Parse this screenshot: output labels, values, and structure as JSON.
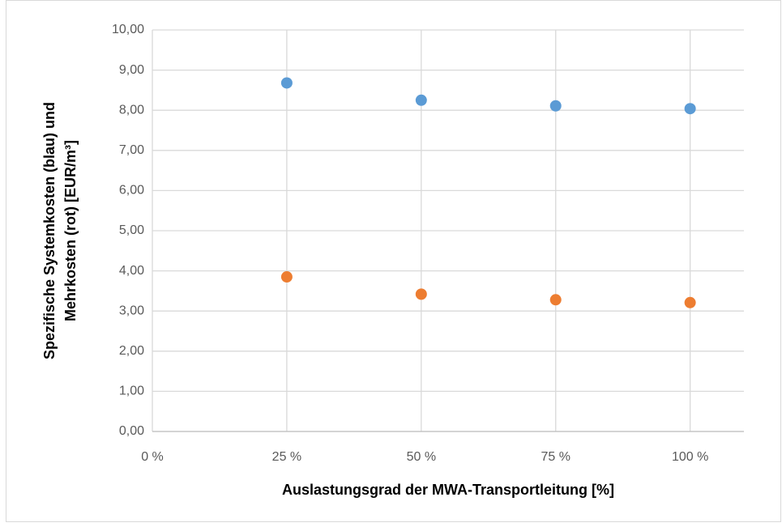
{
  "chart_data": {
    "type": "scatter",
    "xlabel": "Auslastungsgrad der MWA-Transportleitung [%]",
    "ylabel": [
      "Spezifische Systemkosten (blau) und",
      "Mehrkosten (rot) [EUR/m³]"
    ],
    "xlim": [
      0,
      110
    ],
    "xticks": [
      {
        "value": 0,
        "label": "0 %"
      },
      {
        "value": 25,
        "label": "25 %"
      },
      {
        "value": 50,
        "label": "50 %"
      },
      {
        "value": 75,
        "label": "75 %"
      },
      {
        "value": 100,
        "label": "100 %"
      }
    ],
    "ylim": [
      0,
      10
    ],
    "yticks": [
      {
        "value": 0,
        "label": "0,00"
      },
      {
        "value": 1,
        "label": "1,00"
      },
      {
        "value": 2,
        "label": "2,00"
      },
      {
        "value": 3,
        "label": "3,00"
      },
      {
        "value": 4,
        "label": "4,00"
      },
      {
        "value": 5,
        "label": "5,00"
      },
      {
        "value": 6,
        "label": "6,00"
      },
      {
        "value": 7,
        "label": "7,00"
      },
      {
        "value": 8,
        "label": "8,00"
      },
      {
        "value": 9,
        "label": "9,00"
      },
      {
        "value": 10,
        "label": "10,00"
      }
    ],
    "grid": true,
    "series": [
      {
        "color": "#5b9bd5",
        "x": [
          25,
          50,
          75,
          100
        ],
        "values": [
          8.68,
          8.25,
          8.11,
          8.04
        ]
      },
      {
        "color": "#ed7d31",
        "x": [
          25,
          50,
          75,
          100
        ],
        "values": [
          3.85,
          3.42,
          3.28,
          3.21
        ]
      }
    ]
  }
}
